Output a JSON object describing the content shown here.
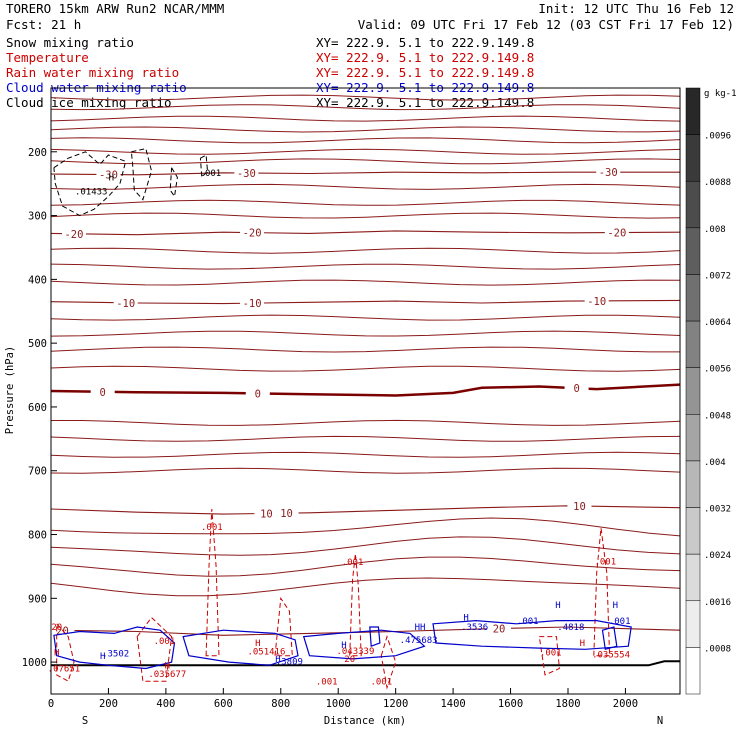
{
  "header": {
    "left1": "TORERO  15km ARW    Run2     NCAR/MMM",
    "right1": "Init: 12 UTC Thu 16 Feb 12",
    "left2": "Fcst:    21 h",
    "right2": "Valid: 09 UTC Fri 17 Feb 12 (03 CST Fri 17 Feb 12)"
  },
  "fields": [
    {
      "name": "Snow mixing ratio",
      "xy": "XY= 222.9.  5.1 to 222.9.149.8",
      "color": "#000000"
    },
    {
      "name": "Temperature",
      "xy": "XY= 222.9.  5.1 to 222.9.149.8",
      "color": "#cc0000"
    },
    {
      "name": "Rain water mixing ratio",
      "xy": "XY= 222.9.  5.1 to 222.9.149.8",
      "color": "#cc0000"
    },
    {
      "name": "Cloud water mixing ratio",
      "xy": "XY= 222.9.  5.1 to 222.9.149.8",
      "color": "#0000cc"
    },
    {
      "name": "Cloud ice mixing ratio",
      "xy": "XY= 222.9.  5.1 to 222.9.149.8",
      "color": "#000000"
    }
  ],
  "chart_data": {
    "type": "line",
    "xlabel": "Distance (km)",
    "ylabel": "Pressure (hPa)",
    "xlim": [
      0,
      2190
    ],
    "ylim": [
      1050,
      100
    ],
    "xticks": [
      0,
      200,
      400,
      600,
      800,
      1000,
      1200,
      1400,
      1600,
      1800,
      2000
    ],
    "yticks": [
      200,
      300,
      400,
      500,
      600,
      700,
      800,
      900,
      1000
    ],
    "direction_left": "S",
    "direction_right": "N",
    "temperature_isotherms": [
      {
        "value": -30,
        "points": [
          [
            0,
            235
          ],
          [
            300,
            236
          ],
          [
            600,
            233
          ],
          [
            900,
            234
          ],
          [
            1200,
            232
          ],
          [
            1500,
            233
          ],
          [
            1800,
            232
          ],
          [
            2190,
            232
          ]
        ],
        "labels": [
          {
            "x": 200,
            "text": "-30"
          },
          {
            "x": 680,
            "text": "-30"
          },
          {
            "x": 1940,
            "text": "-30"
          }
        ]
      },
      {
        "value": -20,
        "points": [
          [
            0,
            328
          ],
          [
            300,
            330
          ],
          [
            600,
            326
          ],
          [
            900,
            328
          ],
          [
            1200,
            324
          ],
          [
            1500,
            326
          ],
          [
            1800,
            327
          ],
          [
            2190,
            326
          ]
        ],
        "labels": [
          {
            "x": 80,
            "text": "-20"
          },
          {
            "x": 700,
            "text": "-20"
          },
          {
            "x": 1970,
            "text": "-20"
          }
        ]
      },
      {
        "value": -10,
        "points": [
          [
            0,
            435
          ],
          [
            300,
            437
          ],
          [
            600,
            438
          ],
          [
            900,
            436
          ],
          [
            1200,
            434
          ],
          [
            1500,
            437
          ],
          [
            1800,
            434
          ],
          [
            2190,
            433
          ]
        ],
        "labels": [
          {
            "x": 260,
            "text": "-10"
          },
          {
            "x": 700,
            "text": "-10"
          },
          {
            "x": 1900,
            "text": "-10"
          }
        ]
      },
      {
        "value": 0,
        "points": [
          [
            0,
            575
          ],
          [
            300,
            577
          ],
          [
            600,
            578
          ],
          [
            900,
            580
          ],
          [
            1200,
            582
          ],
          [
            1400,
            578
          ],
          [
            1500,
            570
          ],
          [
            1700,
            568
          ],
          [
            1900,
            572
          ],
          [
            2190,
            565
          ]
        ],
        "labels": [
          {
            "x": 180,
            "text": "0"
          },
          {
            "x": 720,
            "text": "0"
          },
          {
            "x": 1830,
            "text": "0"
          }
        ]
      },
      {
        "value": 10,
        "points": [
          [
            0,
            760
          ],
          [
            300,
            765
          ],
          [
            600,
            768
          ],
          [
            900,
            766
          ],
          [
            1200,
            762
          ],
          [
            1500,
            758
          ],
          [
            1800,
            755
          ],
          [
            2190,
            758
          ]
        ],
        "labels": [
          {
            "x": 750,
            "text": "10"
          },
          {
            "x": 820,
            "text": "10"
          },
          {
            "x": 1840,
            "text": "10"
          }
        ]
      },
      {
        "value": 20,
        "points": [
          [
            0,
            950
          ],
          [
            300,
            952
          ],
          [
            600,
            958
          ],
          [
            900,
            955
          ],
          [
            1200,
            952
          ],
          [
            1500,
            948
          ],
          [
            1800,
            945
          ],
          [
            2190,
            950
          ]
        ],
        "labels": [
          {
            "x": 1560,
            "text": "20"
          },
          {
            "x": 40,
            "text": "20"
          }
        ]
      }
    ],
    "colorbar": {
      "unit": "g kg-1",
      "ticks": [
        "",
        ".0096",
        ".0088",
        ".008",
        ".0072",
        ".0064",
        ".0056",
        ".0048",
        ".004",
        ".0032",
        ".0024",
        ".0016",
        ".0008",
        ""
      ]
    },
    "annotations": [
      {
        "x": 140,
        "p": 267,
        "text": ".01433",
        "color": "#000000"
      },
      {
        "x": 555,
        "p": 238,
        "text": ".001",
        "color": "#000000"
      },
      {
        "x": 560,
        "p": 793,
        "text": ".001",
        "color": "#cc0000"
      },
      {
        "x": 1050,
        "p": 848,
        "text": ".001",
        "color": "#cc0000"
      },
      {
        "x": 1930,
        "p": 847,
        "text": ".001",
        "color": "#cc0000"
      },
      {
        "x": 20,
        "p": 950,
        "text": "20",
        "color": "#cc0000"
      },
      {
        "x": 45,
        "p": 1015,
        "text": ".07651",
        "color": "#cc0000"
      },
      {
        "x": 225,
        "p": 991,
        "text": ".3502",
        "color": "#0000cc"
      },
      {
        "x": 405,
        "p": 1023,
        "text": ".035677",
        "color": "#cc0000"
      },
      {
        "x": 395,
        "p": 972,
        "text": ".001",
        "color": "#cc0000"
      },
      {
        "x": 750,
        "p": 988,
        "text": ".051416",
        "color": "#cc0000"
      },
      {
        "x": 830,
        "p": 1004,
        "text": ".3809",
        "color": "#0000cc"
      },
      {
        "x": 1060,
        "p": 987,
        "text": ".043339",
        "color": "#cc0000"
      },
      {
        "x": 1040,
        "p": 1000,
        "text": "20",
        "color": "#cc0000"
      },
      {
        "x": 1280,
        "p": 970,
        "text": ".475683",
        "color": "#0000cc"
      },
      {
        "x": 1475,
        "p": 950,
        "text": ".3536",
        "color": "#0000cc"
      },
      {
        "x": 1660,
        "p": 940,
        "text": ".001",
        "color": "#0000cc"
      },
      {
        "x": 1810,
        "p": 950,
        "text": ".4818",
        "color": "#0000cc"
      },
      {
        "x": 1980,
        "p": 940,
        "text": ".001",
        "color": "#0000cc"
      },
      {
        "x": 1740,
        "p": 990,
        "text": ".001",
        "color": "#cc0000"
      },
      {
        "x": 1950,
        "p": 993,
        "text": ".035554",
        "color": "#cc0000"
      },
      {
        "x": 960,
        "p": 1035,
        "text": ".001",
        "color": "#cc0000"
      },
      {
        "x": 1150,
        "p": 1035,
        "text": ".001",
        "color": "#cc0000"
      }
    ],
    "markers": [
      {
        "x": 210,
        "p": 245,
        "text": "H",
        "color": "#000000"
      },
      {
        "x": 20,
        "p": 990,
        "text": "H",
        "color": "#cc0000"
      },
      {
        "x": 180,
        "p": 995,
        "text": "H",
        "color": "#0000cc"
      },
      {
        "x": 405,
        "p": 1010,
        "text": "H",
        "color": "#cc0000"
      },
      {
        "x": 720,
        "p": 975,
        "text": "H",
        "color": "#cc0000"
      },
      {
        "x": 790,
        "p": 1000,
        "text": "H",
        "color": "#0000cc"
      },
      {
        "x": 1020,
        "p": 978,
        "text": "H",
        "color": "#0000cc"
      },
      {
        "x": 1285,
        "p": 950,
        "text": "HH",
        "color": "#0000cc"
      },
      {
        "x": 1445,
        "p": 935,
        "text": "H",
        "color": "#0000cc"
      },
      {
        "x": 1765,
        "p": 915,
        "text": "H",
        "color": "#0000cc"
      },
      {
        "x": 1850,
        "p": 975,
        "text": "H",
        "color": "#cc0000"
      },
      {
        "x": 1965,
        "p": 915,
        "text": "H",
        "color": "#0000cc"
      }
    ]
  }
}
